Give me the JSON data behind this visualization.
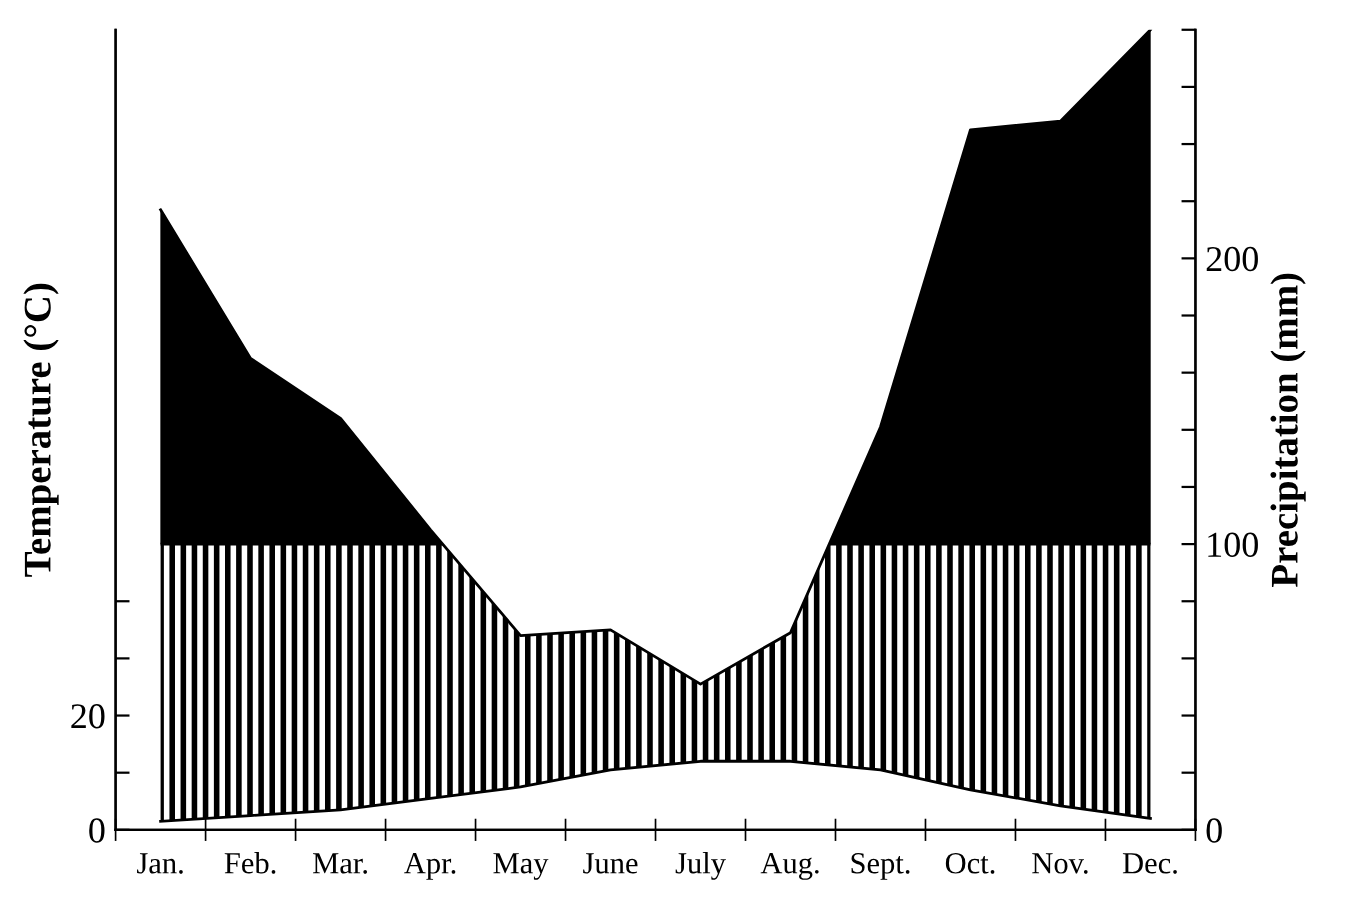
{
  "chart_data": {
    "type": "area",
    "ylabel": "Temperature (°C)",
    "y2label": "Precipitation (mm)",
    "categories": [
      "Jan.",
      "Feb.",
      "Mar.",
      "Apr.",
      "May",
      "June",
      "July",
      "Aug.",
      "Sept.",
      "Oct.",
      "Nov.",
      "Dec."
    ],
    "ylim": [
      0,
      140
    ],
    "yticks": [
      0,
      {
        "value": 10,
        "label": null
      },
      20,
      {
        "value": 30,
        "label": null
      },
      {
        "value": 40,
        "label": null
      }
    ],
    "y2lim": [
      0,
      280
    ],
    "y2ticks": [
      0,
      {
        "value": 20,
        "label": null
      },
      {
        "value": 40,
        "label": null
      },
      {
        "value": 60,
        "label": null
      },
      {
        "value": 80,
        "label": null
      },
      100,
      {
        "value": 120,
        "label": null
      },
      {
        "value": 140,
        "label": null
      },
      {
        "value": 160,
        "label": null
      },
      {
        "value": 180,
        "label": null
      },
      200,
      {
        "value": 220,
        "label": null
      },
      {
        "value": 240,
        "label": null
      },
      {
        "value": 260,
        "label": null
      },
      {
        "value": 280,
        "label": null
      }
    ],
    "ref_lines": [
      {
        "axis": "y2",
        "value": 100,
        "color": "#000000"
      }
    ],
    "bands": [
      {
        "axis": "y2",
        "from": 100,
        "to": 280,
        "color": "#000000"
      }
    ],
    "grid": false,
    "series": [
      {
        "axis": "y2",
        "color": "#000000",
        "values": [
          217,
          165,
          144,
          105,
          68,
          70,
          51,
          69,
          141,
          245,
          248,
          280
        ]
      },
      {
        "type": "line",
        "color": "#000000",
        "values": [
          1.5,
          2.5,
          3.5,
          5.5,
          7.5,
          10.5,
          12,
          12,
          10.5,
          7,
          4.2,
          2
        ]
      }
    ]
  }
}
